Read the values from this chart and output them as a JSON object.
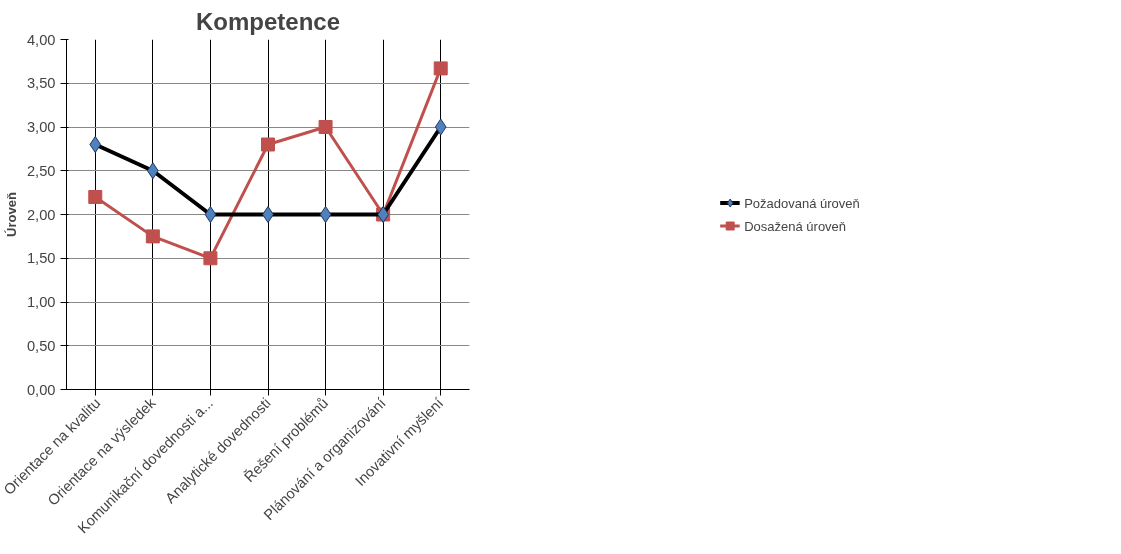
{
  "chart_data": {
    "type": "line",
    "title": "Kompetence",
    "ylabel": "Úroveň",
    "categories": [
      "Orientace na kvalitu",
      "Orientace na výsledek",
      "Komunikační dovednosti a...",
      "Analytické dovednosti",
      "Řešení problémů",
      "Plánování a organizování",
      "Inovativní myšlení"
    ],
    "series": [
      {
        "name": "Požadovaná úroveň",
        "color": "#000000",
        "marker": "diamond",
        "values": [
          2.8,
          2.5,
          2.0,
          2.0,
          2.0,
          2.0,
          3.0
        ]
      },
      {
        "name": "Dosažená úroveň",
        "color": "#c0504d",
        "marker": "square",
        "values": [
          2.2,
          1.75,
          1.5,
          2.8,
          3.0,
          2.0,
          3.67
        ]
      }
    ],
    "ylim": [
      0,
      4
    ],
    "yticks": [
      {
        "value": 0,
        "label": "0,00"
      },
      {
        "value": 0.5,
        "label": "0,50"
      },
      {
        "value": 1,
        "label": "1,00"
      },
      {
        "value": 1.5,
        "label": "1,50"
      },
      {
        "value": 2,
        "label": "2,00"
      },
      {
        "value": 2.5,
        "label": "2,50"
      },
      {
        "value": 3,
        "label": "3,00"
      },
      {
        "value": 3.5,
        "label": "3,50"
      },
      {
        "value": 4,
        "label": "4,00"
      }
    ],
    "grid": true,
    "legend": "right"
  }
}
